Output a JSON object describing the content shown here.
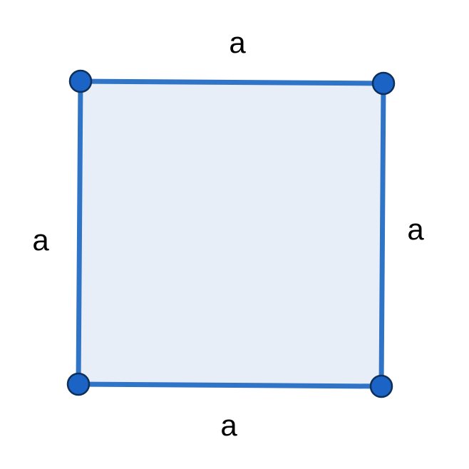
{
  "figure": {
    "shape": "square",
    "side_labels": {
      "top": "a",
      "right": "a",
      "bottom": "a",
      "left": "a"
    },
    "colors": {
      "fill": "#e8eef8",
      "edge": "#2f74c6",
      "vertex_fill": "#1b63c5",
      "vertex_stroke": "#0d2f5a",
      "label": "#000000"
    }
  }
}
